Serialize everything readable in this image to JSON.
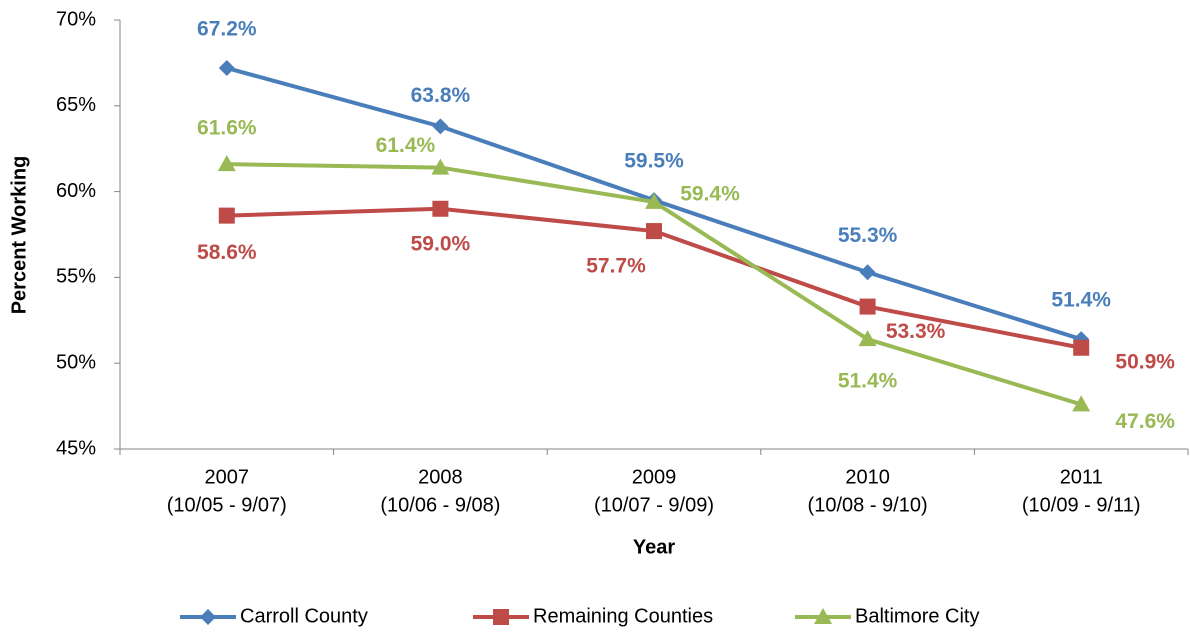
{
  "chart_data": {
    "type": "line",
    "x_label": "Year",
    "y_label": "Percent Working",
    "categories": [
      [
        "2007",
        "(10/05 - 9/07)"
      ],
      [
        "2008",
        "(10/06 - 9/08)"
      ],
      [
        "2009",
        "(10/07 - 9/09)"
      ],
      [
        "2010",
        "(10/08 - 9/10)"
      ],
      [
        "2011",
        "(10/09 - 9/11)"
      ]
    ],
    "ylim": [
      45,
      70
    ],
    "yticks": [
      {
        "value": 45,
        "label": "45%"
      },
      {
        "value": 50,
        "label": "50%"
      },
      {
        "value": 55,
        "label": "55%"
      },
      {
        "value": 60,
        "label": "60%"
      },
      {
        "value": 65,
        "label": "65%"
      },
      {
        "value": 70,
        "label": "70%"
      }
    ],
    "grid": false,
    "legend": "bottom",
    "series": [
      {
        "name": "Carroll County",
        "color": "#4a7ebb",
        "marker": "diamond",
        "values": [
          67.2,
          63.8,
          59.5,
          55.3,
          51.4
        ],
        "value_labels": [
          "67.2%",
          "63.8%",
          "59.5%",
          "55.3%",
          "51.4%"
        ]
      },
      {
        "name": "Remaining Counties",
        "color": "#be4b48",
        "marker": "square",
        "values": [
          58.6,
          59.0,
          57.7,
          53.3,
          50.9
        ],
        "value_labels": [
          "58.6%",
          "59.0%",
          "57.7%",
          "53.3%",
          "50.9%"
        ]
      },
      {
        "name": "Baltimore City",
        "color": "#98b954",
        "marker": "triangle",
        "values": [
          61.6,
          61.4,
          59.4,
          51.4,
          47.6
        ],
        "value_labels": [
          "61.6%",
          "61.4%",
          "59.4%",
          "51.4%",
          "47.6%"
        ]
      }
    ]
  }
}
